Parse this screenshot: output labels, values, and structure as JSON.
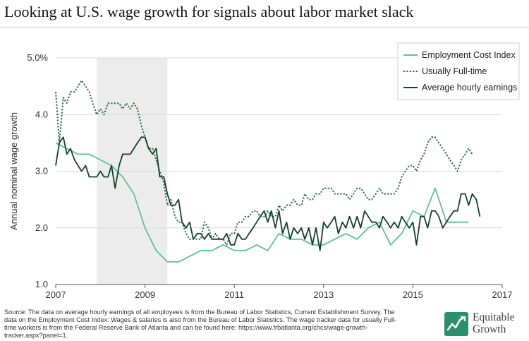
{
  "page": {
    "title": "Looking at U.S. wage growth for signals about labor market slack",
    "source_text": "Source: The data on average hourly earnings of all employees is from the Bureau of Labor Statistics, Current Establishment Survey. The data on the Employment Cost Index: Wages & salaries is also from the Bureau of Labor Statistics. The wage tracker data for usually Full-time workers is from the Federal Reserve Bank of Atlanta and can be found here: https://www.frbatlanta.org/chcs/wage-growth-tracker.aspx?panel=1.",
    "logo": {
      "line1": "Equitable",
      "line2": "Growth",
      "icon": "equitable-growth-logo-icon",
      "color": "#2e8f6e"
    }
  },
  "chart_data": {
    "type": "line",
    "title": "",
    "xlabel": "",
    "ylabel": "Annual nominal wage growth",
    "xlim": [
      2007,
      2017
    ],
    "ylim": [
      1.0,
      5.0
    ],
    "x_ticks": [
      "2007",
      "2009",
      "2011",
      "2013",
      "2015",
      "2017"
    ],
    "y_ticks": [
      "1.0",
      "2.0",
      "3.0",
      "4.0",
      "5.0%"
    ],
    "grid": "horizontal",
    "legend_position": "top-right",
    "recession_shading": {
      "start": 2007.92,
      "end": 2009.5,
      "color": "#ececec"
    },
    "series": [
      {
        "name": "Employment Cost Index",
        "style": "solid",
        "color": "#5cc29b",
        "points": [
          [
            2007.0,
            3.5
          ],
          [
            2007.25,
            3.4
          ],
          [
            2007.5,
            3.3
          ],
          [
            2007.75,
            3.3
          ],
          [
            2008.0,
            3.2
          ],
          [
            2008.25,
            3.1
          ],
          [
            2008.5,
            2.9
          ],
          [
            2008.75,
            2.6
          ],
          [
            2009.0,
            2.0
          ],
          [
            2009.25,
            1.6
          ],
          [
            2009.5,
            1.4
          ],
          [
            2009.75,
            1.4
          ],
          [
            2010.0,
            1.5
          ],
          [
            2010.25,
            1.6
          ],
          [
            2010.5,
            1.6
          ],
          [
            2010.75,
            1.7
          ],
          [
            2011.0,
            1.6
          ],
          [
            2011.25,
            1.6
          ],
          [
            2011.5,
            1.7
          ],
          [
            2011.75,
            1.6
          ],
          [
            2012.0,
            1.9
          ],
          [
            2012.25,
            1.8
          ],
          [
            2012.5,
            1.8
          ],
          [
            2012.75,
            1.7
          ],
          [
            2013.0,
            1.7
          ],
          [
            2013.25,
            1.8
          ],
          [
            2013.5,
            1.9
          ],
          [
            2013.75,
            1.8
          ],
          [
            2014.0,
            2.0
          ],
          [
            2014.25,
            2.1
          ],
          [
            2014.5,
            1.7
          ],
          [
            2014.75,
            1.9
          ],
          [
            2015.0,
            2.3
          ],
          [
            2015.25,
            2.2
          ],
          [
            2015.5,
            2.7
          ],
          [
            2015.75,
            2.1
          ],
          [
            2016.0,
            2.1
          ],
          [
            2016.25,
            2.1
          ]
        ]
      },
      {
        "name": "Usually Full-time",
        "style": "dotted",
        "color": "#2e6b4a",
        "points": [
          [
            2007.0,
            4.4
          ],
          [
            2007.08,
            3.5
          ],
          [
            2007.17,
            4.3
          ],
          [
            2007.25,
            4.2
          ],
          [
            2007.33,
            4.4
          ],
          [
            2007.42,
            4.4
          ],
          [
            2007.5,
            4.5
          ],
          [
            2007.58,
            4.6
          ],
          [
            2007.67,
            4.5
          ],
          [
            2007.75,
            4.4
          ],
          [
            2007.83,
            4.2
          ],
          [
            2007.92,
            4.0
          ],
          [
            2008.0,
            4.1
          ],
          [
            2008.08,
            4.0
          ],
          [
            2008.17,
            4.2
          ],
          [
            2008.25,
            4.2
          ],
          [
            2008.33,
            4.2
          ],
          [
            2008.42,
            4.2
          ],
          [
            2008.5,
            4.1
          ],
          [
            2008.58,
            4.2
          ],
          [
            2008.67,
            4.1
          ],
          [
            2008.75,
            4.2
          ],
          [
            2008.83,
            4.1
          ],
          [
            2008.92,
            3.8
          ],
          [
            2009.0,
            3.6
          ],
          [
            2009.08,
            3.4
          ],
          [
            2009.17,
            3.4
          ],
          [
            2009.25,
            3.2
          ],
          [
            2009.33,
            3.0
          ],
          [
            2009.42,
            2.8
          ],
          [
            2009.5,
            2.4
          ],
          [
            2009.58,
            2.5
          ],
          [
            2009.67,
            2.2
          ],
          [
            2009.75,
            2.1
          ],
          [
            2009.83,
            2.1
          ],
          [
            2009.92,
            1.9
          ],
          [
            2010.0,
            1.8
          ],
          [
            2010.08,
            1.8
          ],
          [
            2010.17,
            1.8
          ],
          [
            2010.25,
            1.8
          ],
          [
            2010.33,
            2.1
          ],
          [
            2010.42,
            2.0
          ],
          [
            2010.5,
            1.8
          ],
          [
            2010.58,
            1.9
          ],
          [
            2010.67,
            1.8
          ],
          [
            2010.75,
            1.8
          ],
          [
            2010.83,
            1.7
          ],
          [
            2010.92,
            1.9
          ],
          [
            2011.0,
            1.9
          ],
          [
            2011.08,
            2.1
          ],
          [
            2011.17,
            2.1
          ],
          [
            2011.25,
            2.2
          ],
          [
            2011.33,
            2.2
          ],
          [
            2011.42,
            2.3
          ],
          [
            2011.5,
            2.3
          ],
          [
            2011.58,
            2.2
          ],
          [
            2011.67,
            2.2
          ],
          [
            2011.75,
            2.3
          ],
          [
            2011.83,
            2.2
          ],
          [
            2011.92,
            2.2
          ],
          [
            2012.0,
            2.4
          ],
          [
            2012.08,
            2.3
          ],
          [
            2012.17,
            2.4
          ],
          [
            2012.25,
            2.4
          ],
          [
            2012.33,
            2.5
          ],
          [
            2012.42,
            2.4
          ],
          [
            2012.5,
            2.4
          ],
          [
            2012.58,
            2.6
          ],
          [
            2012.67,
            2.5
          ],
          [
            2012.75,
            2.5
          ],
          [
            2012.83,
            2.6
          ],
          [
            2012.92,
            2.6
          ],
          [
            2013.0,
            2.7
          ],
          [
            2013.08,
            2.7
          ],
          [
            2013.17,
            2.7
          ],
          [
            2013.25,
            2.6
          ],
          [
            2013.33,
            2.6
          ],
          [
            2013.42,
            2.6
          ],
          [
            2013.5,
            2.6
          ],
          [
            2013.58,
            2.5
          ],
          [
            2013.67,
            2.6
          ],
          [
            2013.75,
            2.7
          ],
          [
            2013.83,
            2.7
          ],
          [
            2013.92,
            2.6
          ],
          [
            2014.0,
            2.5
          ],
          [
            2014.08,
            2.5
          ],
          [
            2014.17,
            2.6
          ],
          [
            2014.25,
            2.7
          ],
          [
            2014.33,
            2.6
          ],
          [
            2014.42,
            2.6
          ],
          [
            2014.5,
            2.6
          ],
          [
            2014.58,
            2.6
          ],
          [
            2014.67,
            2.7
          ],
          [
            2014.75,
            2.9
          ],
          [
            2014.83,
            3.0
          ],
          [
            2014.92,
            3.1
          ],
          [
            2015.0,
            3.1
          ],
          [
            2015.08,
            3.0
          ],
          [
            2015.17,
            3.2
          ],
          [
            2015.25,
            3.3
          ],
          [
            2015.33,
            3.5
          ],
          [
            2015.42,
            3.6
          ],
          [
            2015.5,
            3.6
          ],
          [
            2015.58,
            3.5
          ],
          [
            2015.67,
            3.4
          ],
          [
            2015.75,
            3.3
          ],
          [
            2015.83,
            3.2
          ],
          [
            2015.92,
            3.1
          ],
          [
            2016.0,
            3.0
          ],
          [
            2016.08,
            3.2
          ],
          [
            2016.17,
            3.3
          ],
          [
            2016.25,
            3.4
          ],
          [
            2016.33,
            3.3
          ]
        ]
      },
      {
        "name": "Average hourly earnings",
        "style": "solid",
        "color": "#17402b",
        "points": [
          [
            2007.0,
            3.1
          ],
          [
            2007.08,
            3.5
          ],
          [
            2007.17,
            3.6
          ],
          [
            2007.25,
            3.3
          ],
          [
            2007.33,
            3.4
          ],
          [
            2007.42,
            3.2
          ],
          [
            2007.5,
            3.1
          ],
          [
            2007.58,
            3.0
          ],
          [
            2007.67,
            3.1
          ],
          [
            2007.75,
            2.9
          ],
          [
            2007.83,
            2.9
          ],
          [
            2007.92,
            2.9
          ],
          [
            2008.0,
            3.0
          ],
          [
            2008.08,
            2.9
          ],
          [
            2008.17,
            2.9
          ],
          [
            2008.25,
            3.1
          ],
          [
            2008.33,
            2.7
          ],
          [
            2008.42,
            3.1
          ],
          [
            2008.5,
            3.3
          ],
          [
            2008.58,
            3.3
          ],
          [
            2008.67,
            3.3
          ],
          [
            2008.75,
            3.4
          ],
          [
            2008.83,
            3.5
          ],
          [
            2008.92,
            3.6
          ],
          [
            2009.0,
            3.6
          ],
          [
            2009.08,
            3.4
          ],
          [
            2009.17,
            3.3
          ],
          [
            2009.25,
            3.4
          ],
          [
            2009.33,
            2.9
          ],
          [
            2009.42,
            2.9
          ],
          [
            2009.5,
            2.6
          ],
          [
            2009.58,
            2.4
          ],
          [
            2009.67,
            2.4
          ],
          [
            2009.75,
            2.5
          ],
          [
            2009.83,
            2.1
          ],
          [
            2009.92,
            2.0
          ],
          [
            2010.0,
            2.1
          ],
          [
            2010.08,
            1.8
          ],
          [
            2010.17,
            1.9
          ],
          [
            2010.25,
            1.9
          ],
          [
            2010.33,
            1.8
          ],
          [
            2010.42,
            1.9
          ],
          [
            2010.5,
            1.8
          ],
          [
            2010.58,
            1.8
          ],
          [
            2010.67,
            1.8
          ],
          [
            2010.75,
            1.8
          ],
          [
            2010.83,
            1.9
          ],
          [
            2010.92,
            1.7
          ],
          [
            2011.0,
            1.7
          ],
          [
            2011.08,
            1.9
          ],
          [
            2011.17,
            1.8
          ],
          [
            2011.25,
            1.8
          ],
          [
            2011.33,
            1.9
          ],
          [
            2011.42,
            2.0
          ],
          [
            2011.5,
            2.1
          ],
          [
            2011.58,
            2.2
          ],
          [
            2011.67,
            2.3
          ],
          [
            2011.75,
            2.1
          ],
          [
            2011.83,
            2.3
          ],
          [
            2011.92,
            2.0
          ],
          [
            2012.0,
            2.3
          ],
          [
            2012.08,
            1.9
          ],
          [
            2012.17,
            2.1
          ],
          [
            2012.25,
            1.8
          ],
          [
            2012.33,
            2.0
          ],
          [
            2012.42,
            1.9
          ],
          [
            2012.5,
            2.0
          ],
          [
            2012.58,
            1.8
          ],
          [
            2012.67,
            2.0
          ],
          [
            2012.75,
            1.7
          ],
          [
            2012.83,
            2.0
          ],
          [
            2012.92,
            1.6
          ],
          [
            2013.0,
            2.1
          ],
          [
            2013.08,
            2.0
          ],
          [
            2013.17,
            2.1
          ],
          [
            2013.25,
            2.2
          ],
          [
            2013.33,
            1.9
          ],
          [
            2013.42,
            2.1
          ],
          [
            2013.5,
            2.0
          ],
          [
            2013.58,
            2.2
          ],
          [
            2013.67,
            2.0
          ],
          [
            2013.75,
            2.2
          ],
          [
            2013.83,
            2.0
          ],
          [
            2013.92,
            2.3
          ],
          [
            2014.0,
            2.2
          ],
          [
            2014.08,
            2.1
          ],
          [
            2014.17,
            2.1
          ],
          [
            2014.25,
            2.0
          ],
          [
            2014.33,
            2.2
          ],
          [
            2014.42,
            2.1
          ],
          [
            2014.5,
            2.0
          ],
          [
            2014.58,
            2.1
          ],
          [
            2014.67,
            2.0
          ],
          [
            2014.75,
            2.2
          ],
          [
            2014.83,
            2.1
          ],
          [
            2014.92,
            2.0
          ],
          [
            2015.0,
            2.1
          ],
          [
            2015.08,
            1.7
          ],
          [
            2015.17,
            2.2
          ],
          [
            2015.25,
            2.2
          ],
          [
            2015.33,
            2.0
          ],
          [
            2015.42,
            2.3
          ],
          [
            2015.5,
            2.3
          ],
          [
            2015.58,
            2.2
          ],
          [
            2015.67,
            2.0
          ],
          [
            2015.75,
            2.1
          ],
          [
            2015.83,
            2.2
          ],
          [
            2015.92,
            2.3
          ],
          [
            2016.0,
            2.3
          ],
          [
            2016.08,
            2.6
          ],
          [
            2016.17,
            2.6
          ],
          [
            2016.25,
            2.4
          ],
          [
            2016.33,
            2.6
          ],
          [
            2016.42,
            2.5
          ],
          [
            2016.5,
            2.2
          ]
        ]
      }
    ]
  }
}
